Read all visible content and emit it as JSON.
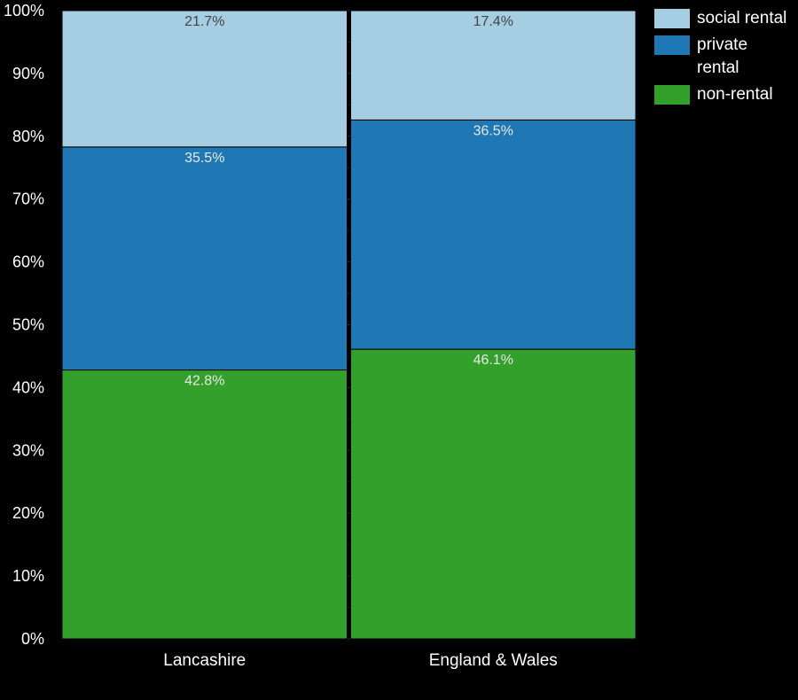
{
  "chart_data": {
    "type": "bar",
    "stacked": true,
    "categories": [
      "Lancashire",
      "England & Wales"
    ],
    "series": [
      {
        "name": "non-rental",
        "color": "#33a02c",
        "values": [
          42.8,
          46.1
        ],
        "labels": [
          "42.8%",
          "46.1%"
        ]
      },
      {
        "name": "private rental",
        "color": "#1f78b4",
        "values": [
          35.5,
          36.5
        ],
        "labels": [
          "35.5%",
          "36.5%"
        ]
      },
      {
        "name": "social rental",
        "color": "#a6cee3",
        "values": [
          21.7,
          17.4
        ],
        "labels": [
          "21.7%",
          "17.4%"
        ]
      }
    ],
    "ylim": [
      0,
      100
    ],
    "yticks": [
      "0%",
      "10%",
      "20%",
      "30%",
      "40%",
      "50%",
      "60%",
      "70%",
      "80%",
      "90%",
      "100%"
    ],
    "grid": true,
    "legend_position": "right"
  },
  "legend": {
    "items": [
      {
        "label": "social rental",
        "color": "#a6cee3"
      },
      {
        "label": "private rental",
        "color": "#1f78b4"
      },
      {
        "label": "non-rental",
        "color": "#33a02c"
      }
    ]
  }
}
